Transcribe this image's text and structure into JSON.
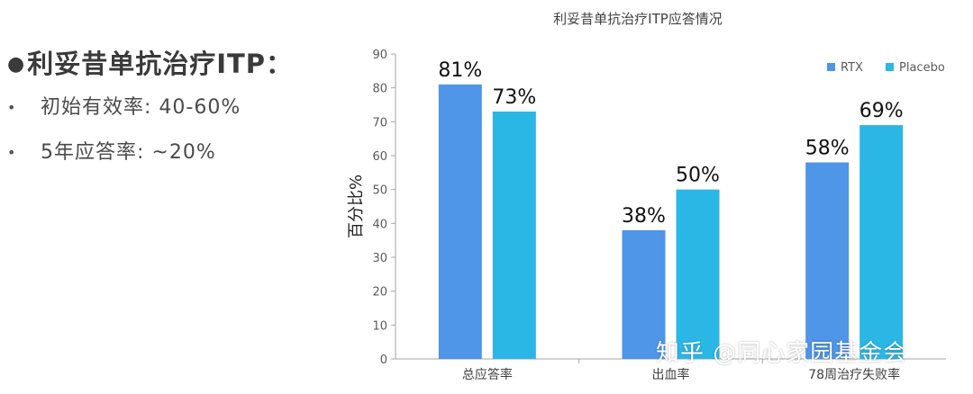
{
  "slide": {
    "heading_bullet": "●",
    "heading": "利妥昔单抗治疗ITP：",
    "items": [
      {
        "bullet": "•",
        "text": "初始有效率: 40-60%"
      },
      {
        "bullet": "•",
        "text": "5年应答率: ~20%"
      }
    ],
    "watermark": "知乎 @同心家园基金会"
  },
  "colors": {
    "rtx": "#4f95e8",
    "placebo": "#2bb7e6",
    "axis": "#a6a6a6",
    "text": "#404040"
  },
  "chart_data": {
    "type": "bar",
    "title": "利妥昔单抗治疗ITP应答情况",
    "xlabel": "",
    "ylabel": "百分比%",
    "ylim": [
      0,
      90
    ],
    "yticks": [
      0,
      10,
      20,
      30,
      40,
      50,
      60,
      70,
      80,
      90
    ],
    "grid": false,
    "legend_position": "top-right",
    "categories": [
      "总应答率",
      "出血率",
      "78周治疗失败率"
    ],
    "series": [
      {
        "name": "RTX",
        "values": [
          81,
          38,
          58
        ],
        "labels": [
          "81%",
          "38%",
          "58%"
        ]
      },
      {
        "name": "Placebo",
        "values": [
          73,
          50,
          69
        ],
        "labels": [
          "73%",
          "50%",
          "69%"
        ]
      }
    ]
  }
}
